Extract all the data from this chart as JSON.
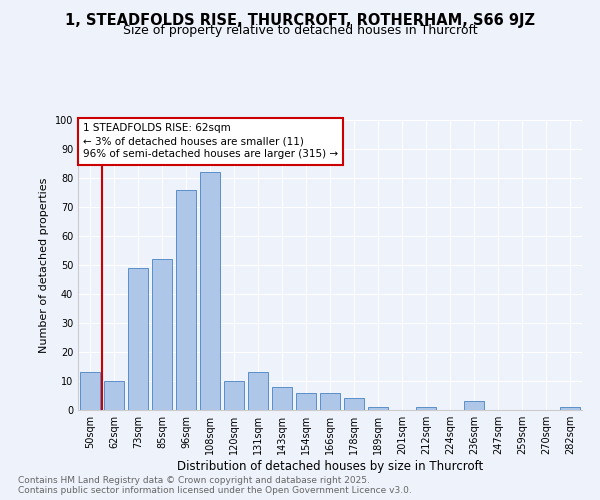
{
  "title": "1, STEADFOLDS RISE, THURCROFT, ROTHERHAM, S66 9JZ",
  "subtitle": "Size of property relative to detached houses in Thurcroft",
  "xlabel": "Distribution of detached houses by size in Thurcroft",
  "ylabel": "Number of detached properties",
  "categories": [
    "50sqm",
    "62sqm",
    "73sqm",
    "85sqm",
    "96sqm",
    "108sqm",
    "120sqm",
    "131sqm",
    "143sqm",
    "154sqm",
    "166sqm",
    "178sqm",
    "189sqm",
    "201sqm",
    "212sqm",
    "224sqm",
    "236sqm",
    "247sqm",
    "259sqm",
    "270sqm",
    "282sqm"
  ],
  "values": [
    13,
    10,
    49,
    52,
    76,
    82,
    10,
    13,
    8,
    6,
    6,
    4,
    1,
    0,
    1,
    0,
    3,
    0,
    0,
    0,
    1
  ],
  "bar_color": "#aec6e8",
  "bar_edge_color": "#5b8fc9",
  "marker_index": 1,
  "annotation_line1": "1 STEADFOLDS RISE: 62sqm",
  "annotation_line2": "← 3% of detached houses are smaller (11)",
  "annotation_line3": "96% of semi-detached houses are larger (315) →",
  "vline_color": "#cc0000",
  "annotation_box_color": "#ffffff",
  "annotation_box_edge": "#cc0000",
  "background_color": "#eef2fa",
  "grid_color": "#ffffff",
  "footer_line1": "Contains HM Land Registry data © Crown copyright and database right 2025.",
  "footer_line2": "Contains public sector information licensed under the Open Government Licence v3.0.",
  "ylim": [
    0,
    100
  ],
  "yticks": [
    0,
    10,
    20,
    30,
    40,
    50,
    60,
    70,
    80,
    90,
    100
  ],
  "title_fontsize": 10.5,
  "subtitle_fontsize": 9,
  "tick_fontsize": 7,
  "ylabel_fontsize": 8,
  "xlabel_fontsize": 8.5,
  "annotation_fontsize": 7.5,
  "footer_fontsize": 6.5
}
